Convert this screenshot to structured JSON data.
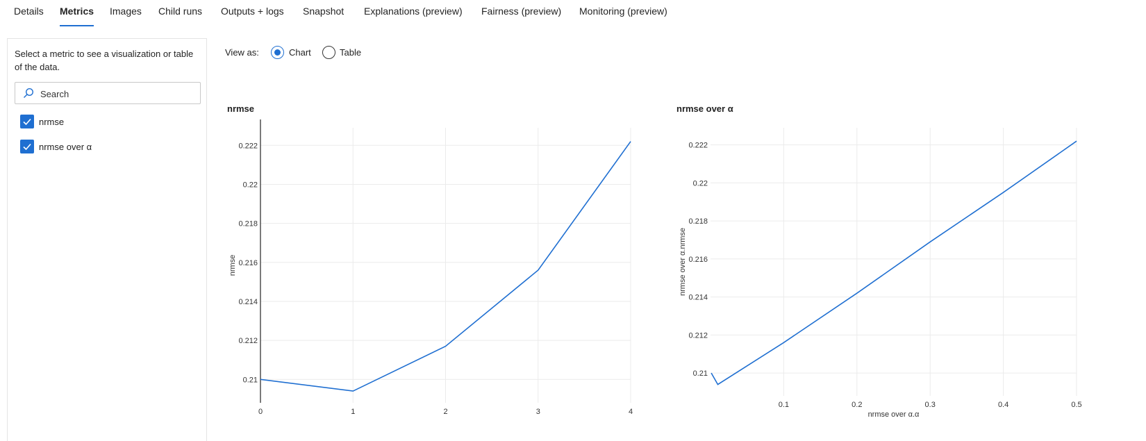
{
  "tabs": [
    "Details",
    "Metrics",
    "Images",
    "Child runs",
    "Outputs + logs",
    "Snapshot",
    "Explanations (preview)",
    "Fairness (preview)",
    "Monitoring (preview)"
  ],
  "active_tab": "Metrics",
  "sidebar": {
    "help_text": "Select a metric to see a visualization or table of the data.",
    "search_placeholder": "Search",
    "metrics": [
      {
        "label": "nrmse",
        "checked": true
      },
      {
        "label": "nrmse over α",
        "checked": true
      }
    ]
  },
  "view": {
    "label": "View as:",
    "options": [
      "Chart",
      "Table"
    ],
    "selected": "Chart"
  },
  "colors": {
    "accent": "#1f6fd1",
    "line": "#1f6fd1",
    "grid": "#ebebeb"
  },
  "chart_data": [
    {
      "type": "line",
      "title": "nrmse",
      "xlabel": "",
      "ylabel": "nrmse",
      "x": [
        0,
        1,
        2,
        3,
        4
      ],
      "series": [
        {
          "values": [
            0.21,
            0.2094,
            0.2117,
            0.2156,
            0.2222
          ]
        }
      ],
      "xticks": [
        "0",
        "1",
        "2",
        "3",
        "4"
      ],
      "yticks": [
        "0.21",
        "0.212",
        "0.214",
        "0.216",
        "0.218",
        "0.22",
        "0.222"
      ],
      "xlim": [
        0,
        4
      ],
      "ylim": [
        0.2088,
        0.2229
      ],
      "grid": true
    },
    {
      "type": "line",
      "title": "nrmse over α",
      "xlabel": "nrmse over α.α",
      "ylabel": "nrmse over α.nrmse",
      "x": [
        0.001,
        0.01,
        0.1,
        0.2,
        0.3,
        0.4,
        0.5
      ],
      "series": [
        {
          "values": [
            0.21,
            0.2094,
            0.2116,
            0.2142,
            0.2169,
            0.2195,
            0.2222
          ]
        }
      ],
      "xticks": [
        "0.1",
        "0.2",
        "0.3",
        "0.4",
        "0.5"
      ],
      "yticks": [
        "0.21",
        "0.212",
        "0.214",
        "0.216",
        "0.218",
        "0.22",
        "0.222"
      ],
      "xlim": [
        0,
        0.5
      ],
      "ylim": [
        0.2088,
        0.2229
      ],
      "grid": true
    }
  ]
}
